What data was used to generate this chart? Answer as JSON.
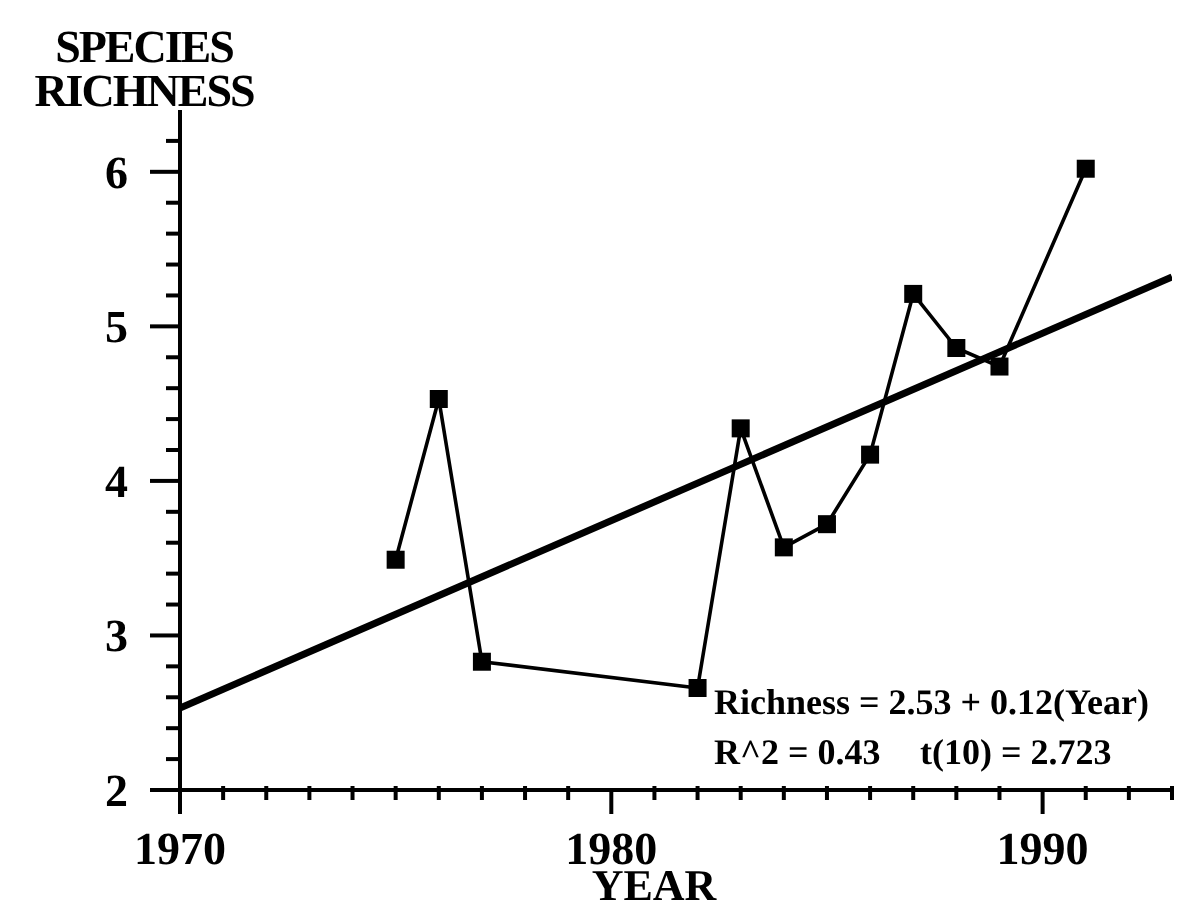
{
  "chart_data": {
    "type": "line",
    "xlabel": "YEAR",
    "ylabel": "SPECIES RICHNESS",
    "xlim": [
      1970,
      1993
    ],
    "xticks": [
      1970,
      {
        "value": 1971,
        "label": null
      },
      {
        "value": 1972,
        "label": null
      },
      {
        "value": 1973,
        "label": null
      },
      {
        "value": 1974,
        "label": null
      },
      {
        "value": 1975,
        "label": null
      },
      {
        "value": 1976,
        "label": null
      },
      {
        "value": 1977,
        "label": null
      },
      {
        "value": 1978,
        "label": null
      },
      {
        "value": 1979,
        "label": null
      },
      1980,
      {
        "value": 1981,
        "label": null
      },
      {
        "value": 1982,
        "label": null
      },
      {
        "value": 1983,
        "label": null
      },
      {
        "value": 1984,
        "label": null
      },
      {
        "value": 1985,
        "label": null
      },
      {
        "value": 1986,
        "label": null
      },
      {
        "value": 1987,
        "label": null
      },
      {
        "value": 1988,
        "label": null
      },
      {
        "value": 1989,
        "label": null
      },
      1990,
      {
        "value": 1991,
        "label": null
      },
      {
        "value": 1992,
        "label": null
      },
      {
        "value": 1993,
        "label": null
      }
    ],
    "ylim": [
      2,
      6.4
    ],
    "yticks": [
      2,
      {
        "value": 2.2,
        "label": null
      },
      {
        "value": 2.4,
        "label": null
      },
      {
        "value": 2.6,
        "label": null
      },
      {
        "value": 2.8,
        "label": null
      },
      3,
      {
        "value": 3.2,
        "label": null
      },
      {
        "value": 3.4,
        "label": null
      },
      {
        "value": 3.6,
        "label": null
      },
      {
        "value": 3.8,
        "label": null
      },
      4,
      {
        "value": 4.2,
        "label": null
      },
      {
        "value": 4.4,
        "label": null
      },
      {
        "value": 4.6,
        "label": null
      },
      {
        "value": 4.8,
        "label": null
      },
      5,
      {
        "value": 5.2,
        "label": null
      },
      {
        "value": 5.4,
        "label": null
      },
      {
        "value": 5.6,
        "label": null
      },
      {
        "value": 5.8,
        "label": null
      },
      6,
      {
        "value": 6.2,
        "label": null
      }
    ],
    "series": [
      {
        "color": "#000000",
        "marker": "square",
        "x": [
          1975,
          1976,
          1977,
          1982,
          1983,
          1984,
          1985,
          1986,
          1987,
          1988,
          1989,
          1991
        ],
        "values": [
          3.49,
          4.53,
          2.83,
          2.66,
          4.34,
          3.57,
          3.72,
          4.17,
          5.21,
          4.86,
          4.74,
          6.02
        ]
      },
      {
        "type": "line",
        "color": "#000000",
        "marker": "none",
        "x": [
          1970,
          1993
        ],
        "values": [
          2.53,
          5.32
        ]
      }
    ],
    "line_style": "solid",
    "annotations": [
      "Richness = 2.53 + 0.12(Year)",
      "R^2 = 0.43",
      "t(10) = 2.723"
    ]
  }
}
